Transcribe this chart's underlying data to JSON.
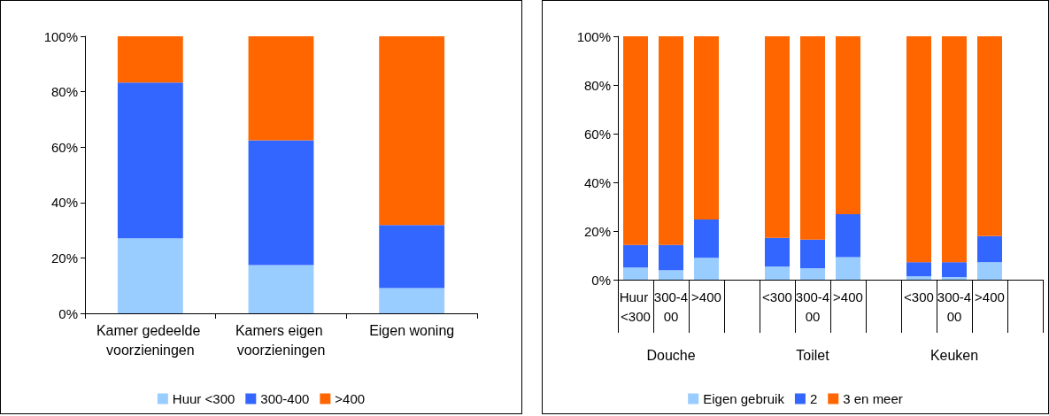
{
  "chart_data": [
    {
      "type": "bar",
      "stacked": true,
      "categories": [
        "Kamer gedeelde voorzieningen",
        "Kamers eigen voorzieningen",
        "Eigen woning"
      ],
      "series": [
        {
          "name": "Huur <300",
          "color": "#99ccff",
          "values": [
            27.1,
            17.4,
            9.1
          ]
        },
        {
          "name": "300-400",
          "color": "#3366ff",
          "values": [
            56.2,
            45.1,
            22.8
          ]
        },
        {
          "name": ">400",
          "color": "#ff6600",
          "values": [
            16.7,
            37.5,
            68.1
          ]
        }
      ],
      "ylim": [
        0,
        100
      ],
      "yticks": [
        {
          "value": 0,
          "label": "0%"
        },
        {
          "value": 20,
          "label": "20%"
        },
        {
          "value": 40,
          "label": "40%"
        },
        {
          "value": 60,
          "label": "60%"
        },
        {
          "value": 80,
          "label": "80%"
        },
        {
          "value": 100,
          "label": "100%"
        }
      ],
      "legend": "bottom"
    },
    {
      "type": "bar",
      "stacked": true,
      "categories": [
        "Huur <300",
        "300-400",
        ">400",
        null,
        "<300",
        "300-400",
        ">400",
        null,
        "<300",
        "300-400",
        ">400",
        null
      ],
      "annotations": [
        "Douche",
        "Toilet",
        "Keuken"
      ],
      "series": [
        {
          "name": "Eigen gebruik",
          "color": "#99ccff",
          "values": [
            5.0,
            3.9,
            9.0,
            null,
            5.4,
            4.7,
            9.3,
            null,
            1.4,
            1.1,
            7.2,
            null
          ]
        },
        {
          "name": "2",
          "color": "#3366ff",
          "values": [
            9.3,
            10.4,
            15.7,
            null,
            11.8,
            11.8,
            17.6,
            null,
            5.8,
            6.1,
            10.7,
            null
          ]
        },
        {
          "name": "3 en meer",
          "color": "#ff6600",
          "values": [
            85.7,
            85.7,
            75.3,
            null,
            82.8,
            83.5,
            73.1,
            null,
            92.8,
            92.8,
            82.1,
            null
          ]
        }
      ],
      "ylim": [
        0,
        100
      ],
      "yticks": [
        {
          "value": 0,
          "label": "0%"
        },
        {
          "value": 20,
          "label": "20%"
        },
        {
          "value": 40,
          "label": "40%"
        },
        {
          "value": 60,
          "label": "60%"
        },
        {
          "value": 80,
          "label": "80%"
        },
        {
          "value": 100,
          "label": "100%"
        }
      ],
      "legend": "bottom"
    }
  ]
}
